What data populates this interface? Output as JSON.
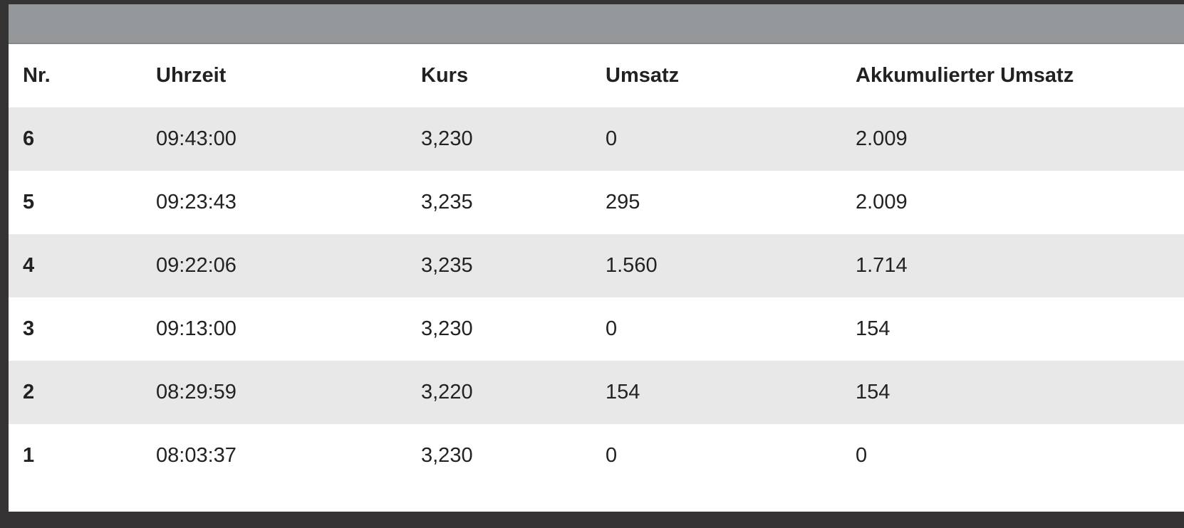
{
  "table": {
    "headers": [
      "Nr.",
      "Uhrzeit",
      "Kurs",
      "Umsatz",
      "Akkumulierter Umsatz"
    ],
    "rows": [
      [
        "6",
        "09:43:00",
        "3,230",
        "0",
        "2.009"
      ],
      [
        "5",
        "09:23:43",
        "3,235",
        "295",
        "2.009"
      ],
      [
        "4",
        "09:22:06",
        "3,235",
        "1.560",
        "1.714"
      ],
      [
        "3",
        "09:13:00",
        "3,230",
        "0",
        "154"
      ],
      [
        "2",
        "08:29:59",
        "3,220",
        "154",
        "154"
      ],
      [
        "1",
        "08:03:37",
        "3,230",
        "0",
        "0"
      ]
    ]
  }
}
